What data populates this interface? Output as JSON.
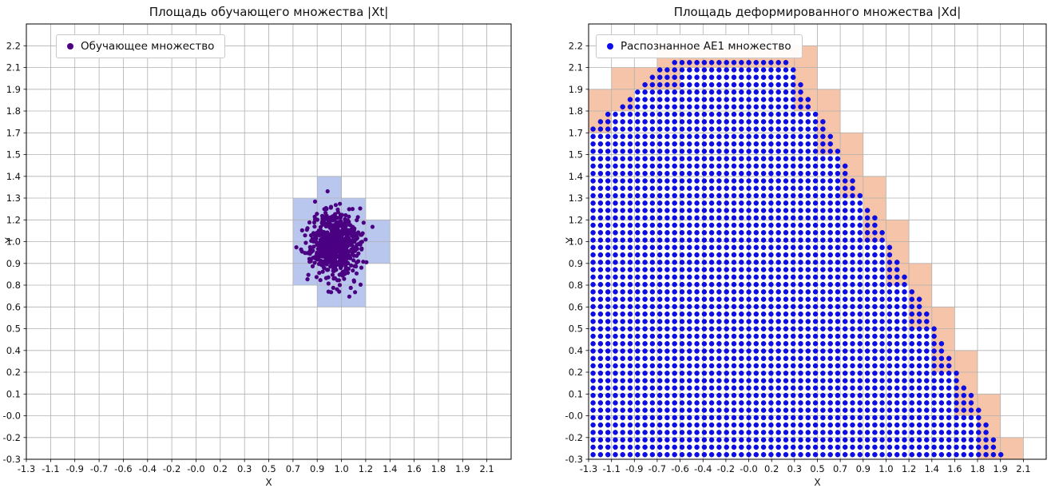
{
  "figure": {
    "background": "#ffffff",
    "grid_color": "#b0b0b0",
    "axis_color": "#000000"
  },
  "chart_data": [
    {
      "type": "scatter",
      "panel": "left",
      "title": "Площадь обучающего множества |Xt|",
      "xlabel": "X",
      "ylabel": "Y",
      "legend": [
        "Обучающее множество"
      ],
      "legend_position": "upper left",
      "grid": true,
      "x_range": [
        -1.28,
        2.3
      ],
      "y_range": [
        -0.29,
        2.34
      ],
      "x_tick_labels": [
        "-1.3",
        "-1.1",
        "-0.9",
        "-0.7",
        "-0.6",
        "-0.4",
        "-0.2",
        "-0.0",
        "0.2",
        "0.3",
        "0.5",
        "0.7",
        "0.9",
        "1.0",
        "1.2",
        "1.4",
        "1.6",
        "1.8",
        "1.9",
        "2.1"
      ],
      "y_tick_labels": [
        "-0.3",
        "-0.2",
        "-0.0",
        "0.1",
        "0.2",
        "0.4",
        "0.5",
        "0.6",
        "0.8",
        "0.9",
        "1.0",
        "1.2",
        "1.3",
        "1.4",
        "1.5",
        "1.7",
        "1.8",
        "1.9",
        "2.1",
        "2.2"
      ],
      "series": [
        {
          "name": "Обучающее множество",
          "kind": "gaussian_cluster",
          "center": [
            1.0,
            1.0
          ],
          "std": [
            0.09,
            0.1
          ],
          "count": 650,
          "seed": 20,
          "color": "#4b0082",
          "marker_radius_px": 2.6
        }
      ],
      "highlight_cells_color": "#b9c7ef",
      "highlight_cells": [
        [
          12,
          12
        ],
        [
          11,
          11
        ],
        [
          12,
          11
        ],
        [
          13,
          11
        ],
        [
          11,
          10
        ],
        [
          12,
          10
        ],
        [
          13,
          10
        ],
        [
          14,
          10
        ],
        [
          11,
          9
        ],
        [
          12,
          9
        ],
        [
          13,
          9
        ],
        [
          14,
          9
        ],
        [
          11,
          8
        ],
        [
          12,
          8
        ],
        [
          13,
          8
        ],
        [
          12,
          7
        ],
        [
          13,
          7
        ]
      ]
    },
    {
      "type": "scatter",
      "panel": "right",
      "title": "Площадь деформированного множества |Xd|",
      "xlabel": "X",
      "ylabel": "Y",
      "legend": [
        "Распознанное AE1 множество"
      ],
      "legend_position": "upper left",
      "grid": true,
      "x_range": [
        -1.28,
        2.3
      ],
      "y_range": [
        -0.29,
        2.34
      ],
      "x_tick_labels": [
        "-1.3",
        "-1.1",
        "-0.9",
        "-0.7",
        "-0.6",
        "-0.4",
        "-0.2",
        "-0.0",
        "0.2",
        "0.3",
        "0.5",
        "0.7",
        "0.9",
        "1.0",
        "1.2",
        "1.4",
        "1.6",
        "1.8",
        "1.9",
        "2.1"
      ],
      "y_tick_labels": [
        "-0.3",
        "-0.2",
        "-0.0",
        "0.1",
        "0.2",
        "0.4",
        "0.5",
        "0.6",
        "0.8",
        "0.9",
        "1.0",
        "1.2",
        "1.3",
        "1.4",
        "1.5",
        "1.7",
        "1.8",
        "1.9",
        "2.1",
        "2.2"
      ],
      "series": [
        {
          "name": "Распознанное AE1 множество",
          "kind": "grid_region",
          "color": "#0d0deb",
          "marker_radius_px": 3.0,
          "grid_step": [
            0.058,
            0.0447
          ],
          "region_polygon": [
            [
              -1.28,
              -0.29
            ],
            [
              -1.28,
              1.72
            ],
            [
              -0.65,
              2.13
            ],
            [
              0.3,
              2.13
            ],
            [
              2.0,
              -0.29
            ]
          ]
        }
      ],
      "boundary_cells_color": "#f6c4a8"
    }
  ]
}
